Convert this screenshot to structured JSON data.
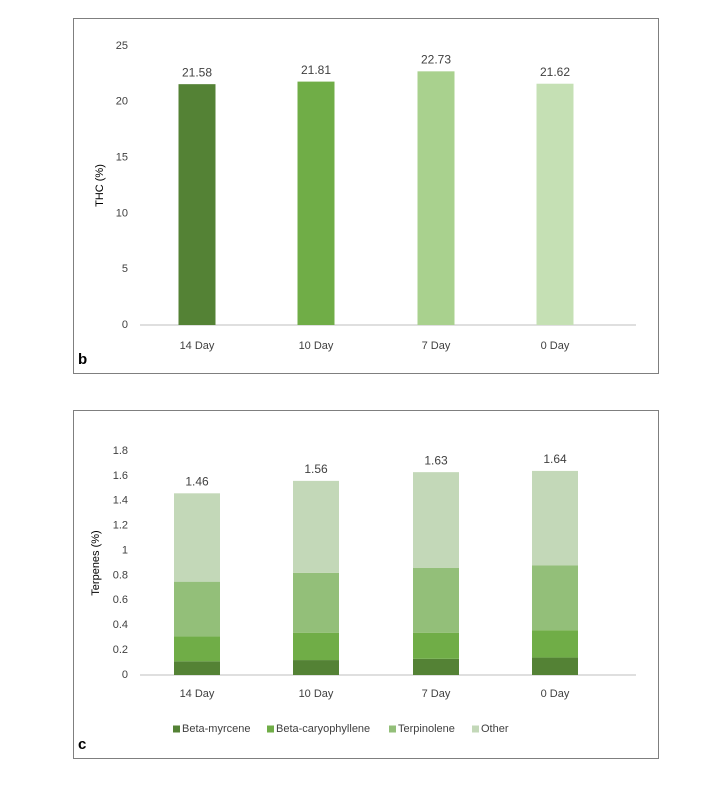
{
  "chart_data": [
    {
      "type": "bar",
      "panel_label": "b",
      "y_label": "THC (%)",
      "categories": [
        "14 Day",
        "10 Day",
        "7 Day",
        "0 Day"
      ],
      "values": [
        21.58,
        21.81,
        22.73,
        21.62
      ],
      "colors": [
        "#548235",
        "#70ad47",
        "#a9d18e",
        "#c5e0b4"
      ],
      "ylim": [
        0,
        25
      ],
      "yticks": [
        0,
        5,
        10,
        15,
        20,
        25
      ]
    },
    {
      "type": "stacked_bar",
      "panel_label": "c",
      "y_label": "Terpenes (%)",
      "categories": [
        "14 Day",
        "10 Day",
        "7 Day",
        "0 Day"
      ],
      "series": [
        {
          "name": "Beta-myrcene",
          "color": "#548235",
          "values": [
            0.11,
            0.12,
            0.13,
            0.14
          ]
        },
        {
          "name": "Beta-caryophyllene",
          "color": "#70ad47",
          "values": [
            0.2,
            0.22,
            0.21,
            0.22
          ]
        },
        {
          "name": "Terpinolene",
          "color": "#93bf79",
          "values": [
            0.44,
            0.48,
            0.52,
            0.52
          ]
        },
        {
          "name": "Other",
          "color": "#c3d8b8",
          "values": [
            0.71,
            0.74,
            0.77,
            0.76
          ]
        }
      ],
      "totals": [
        1.46,
        1.56,
        1.63,
        1.64
      ],
      "ylim": [
        0,
        1.8
      ],
      "yticks": [
        0,
        0.2,
        0.4,
        0.6,
        0.8,
        1,
        1.2,
        1.4,
        1.6,
        1.8
      ],
      "legend": "bottom"
    }
  ]
}
